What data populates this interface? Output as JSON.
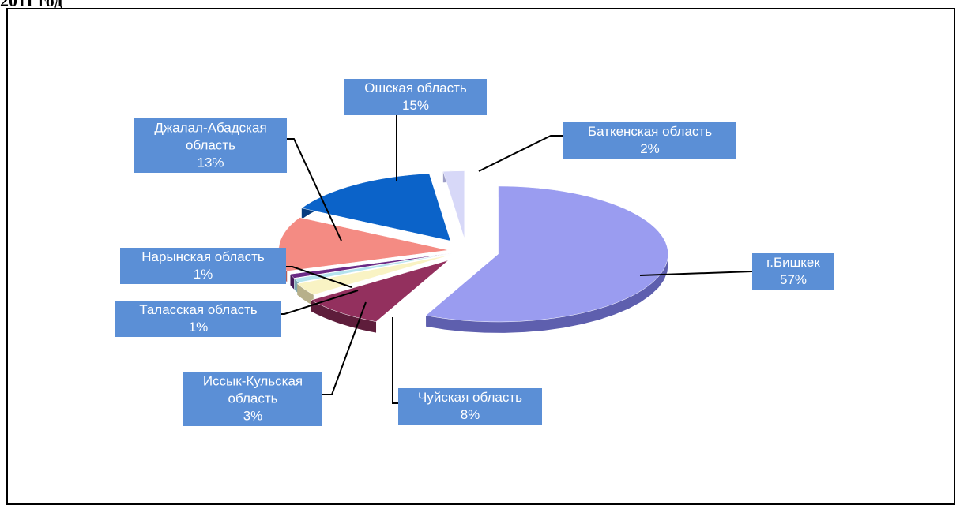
{
  "heading": "2011 год",
  "chart_data": {
    "type": "pie",
    "title": "",
    "slices": [
      {
        "label": "г.Бишкек",
        "value": 57,
        "pct_label": "57%",
        "color": "#9a9cf0",
        "dark": "#5e5fae"
      },
      {
        "label": "Чуйская область",
        "value": 8,
        "pct_label": "8%",
        "color": "#93305e",
        "dark": "#5e1d3b"
      },
      {
        "label": "Иссык-Кульская область",
        "value": 3,
        "pct_label": "3%",
        "color": "#f9f3c4",
        "dark": "#b7b08a"
      },
      {
        "label": "Таласская область",
        "value": 1,
        "pct_label": "1%",
        "color": "#b5e3ee",
        "dark": "#7fa8b2"
      },
      {
        "label": "Нарынская область",
        "value": 1,
        "pct_label": "1%",
        "color": "#6b2a85",
        "dark": "#431958"
      },
      {
        "label": "Джалал-Абадская область",
        "value": 13,
        "pct_label": "13%",
        "color": "#f48b83",
        "dark": "#b55e58"
      },
      {
        "label": "Ошская область",
        "value": 15,
        "pct_label": "15%",
        "color": "#0b63c9",
        "dark": "#063d80"
      },
      {
        "label": "Баткенская область",
        "value": 2,
        "pct_label": "2%",
        "color": "#d7d8f8",
        "dark": "#9d9ec6"
      }
    ],
    "label_box_color": "#5b8fd6",
    "label_text_color": "#ffffff",
    "legend": "none"
  }
}
